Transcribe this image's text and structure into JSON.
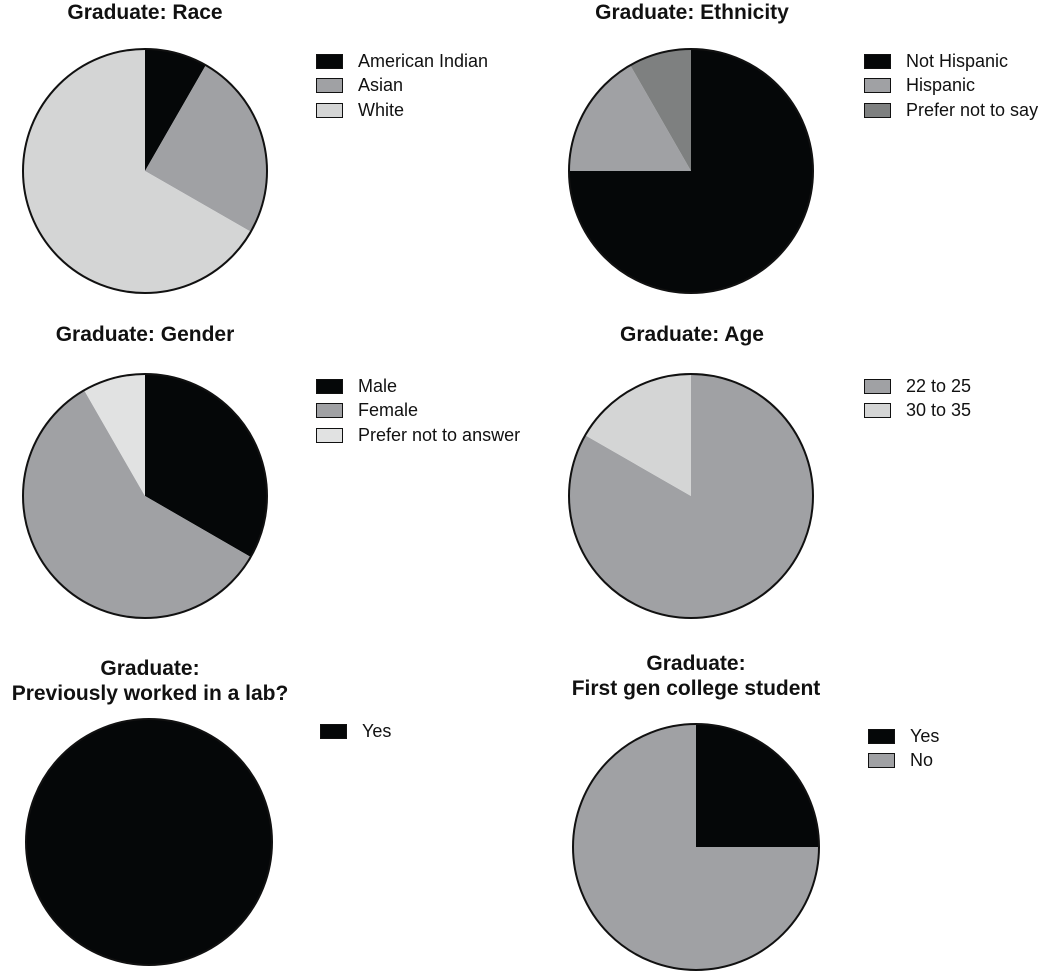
{
  "chart_data": [
    {
      "type": "pie",
      "title": [
        "Graduate: Race"
      ],
      "categories": [
        "American Indian",
        "Asian",
        "White"
      ],
      "values": [
        8.3,
        25,
        66.7
      ],
      "colors": [
        "#050708",
        "#a0a1a4",
        "#d4d5d5"
      ],
      "legend": "right"
    },
    {
      "type": "pie",
      "title": [
        "Graduate: Ethnicity"
      ],
      "categories": [
        "Not Hispanic",
        "Hispanic",
        "Prefer not to say"
      ],
      "values": [
        75,
        16.7,
        8.3
      ],
      "colors": [
        "#050708",
        "#a0a1a4",
        "#7e8080"
      ],
      "legend": "right"
    },
    {
      "type": "pie",
      "title": [
        "Graduate: Gender"
      ],
      "categories": [
        "Male",
        "Female",
        "Prefer not to answer"
      ],
      "values": [
        33.3,
        58.3,
        8.3
      ],
      "colors": [
        "#050708",
        "#a0a1a4",
        "#e1e2e2"
      ],
      "legend": "right"
    },
    {
      "type": "pie",
      "title": [
        "Graduate: Age"
      ],
      "categories": [
        "22 to 25",
        "30 to 35"
      ],
      "values": [
        83.3,
        16.7
      ],
      "colors": [
        "#a0a1a4",
        "#d4d5d5"
      ],
      "legend": "right"
    },
    {
      "type": "pie",
      "title": [
        "Graduate:",
        "Previously worked in a lab?"
      ],
      "categories": [
        "Yes"
      ],
      "values": [
        100
      ],
      "colors": [
        "#050708"
      ],
      "legend": "right"
    },
    {
      "type": "pie",
      "title": [
        "Graduate:",
        "First gen college student"
      ],
      "categories": [
        "Yes",
        "No"
      ],
      "values": [
        25,
        75
      ],
      "colors": [
        "#050708",
        "#a0a1a4"
      ],
      "legend": "right"
    }
  ]
}
